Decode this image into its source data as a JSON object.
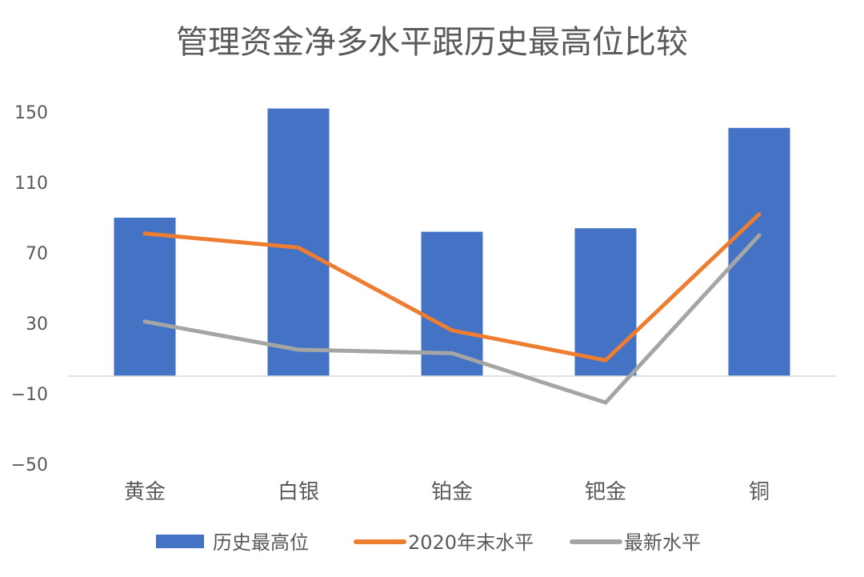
{
  "chart_data": {
    "type": "bar",
    "title": "管理资金净多水平跟历史最高位比较",
    "categories": [
      "黄金",
      "白银",
      "铂金",
      "钯金",
      "铜"
    ],
    "y_ticks": [
      150,
      110,
      70,
      30,
      -10,
      -50
    ],
    "ylim": [
      -50,
      150
    ],
    "grid": false,
    "legend_position": "bottom",
    "series": [
      {
        "name": "历史最高位",
        "kind": "bar",
        "color": "#4472C4",
        "values": [
          90,
          152,
          82,
          84,
          141
        ]
      },
      {
        "name": "2020年末水平",
        "kind": "line",
        "color": "#ED7D31",
        "values": [
          81,
          73,
          26,
          9,
          92
        ]
      },
      {
        "name": "最新水平",
        "kind": "line",
        "color": "#A5A5A5",
        "values": [
          31,
          15,
          13,
          -15,
          80
        ]
      }
    ]
  }
}
